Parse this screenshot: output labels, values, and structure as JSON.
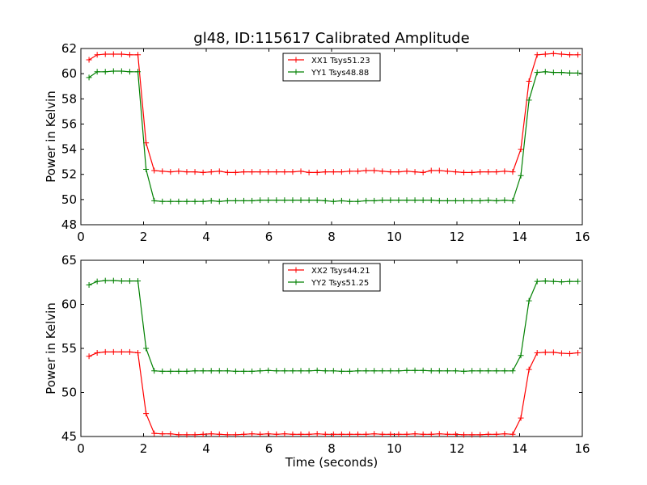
{
  "figure": {
    "title": "gl48, ID:115617 Calibrated Amplitude"
  },
  "colors": {
    "red": "#ff0000",
    "green": "#008000"
  },
  "chart_data": [
    {
      "type": "line",
      "xlabel": "",
      "ylabel": "Power in Kelvin",
      "xlim": [
        0,
        16
      ],
      "ylim": [
        48,
        62
      ],
      "xticks": [
        "0",
        "2",
        "4",
        "6",
        "8",
        "10",
        "12",
        "14",
        "16"
      ],
      "yticks": [
        "48",
        "50",
        "52",
        "54",
        "56",
        "58",
        "60",
        "62"
      ],
      "grid": false,
      "legend_position": "top-center",
      "marker": "plus",
      "x": [
        0.26,
        0.52,
        0.78,
        1.04,
        1.3,
        1.56,
        1.82,
        2.08,
        2.34,
        2.6,
        2.86,
        3.12,
        3.38,
        3.64,
        3.9,
        4.16,
        4.42,
        4.68,
        4.94,
        5.2,
        5.46,
        5.72,
        5.98,
        6.24,
        6.5,
        6.76,
        7.02,
        7.28,
        7.54,
        7.8,
        8.06,
        8.32,
        8.58,
        8.84,
        9.1,
        9.36,
        9.62,
        9.88,
        10.14,
        10.4,
        10.66,
        10.92,
        11.18,
        11.44,
        11.7,
        11.96,
        12.22,
        12.48,
        12.74,
        13.0,
        13.26,
        13.52,
        13.78,
        14.04,
        14.3,
        14.56,
        14.82,
        15.08,
        15.34,
        15.6,
        15.86
      ],
      "series": [
        {
          "name": "XX1 Tsys51.23",
          "color": "#ff0000",
          "values": [
            61.1,
            61.5,
            61.55,
            61.55,
            61.55,
            61.5,
            61.5,
            54.5,
            52.3,
            52.25,
            52.2,
            52.25,
            52.2,
            52.2,
            52.15,
            52.2,
            52.25,
            52.15,
            52.15,
            52.2,
            52.2,
            52.2,
            52.2,
            52.2,
            52.2,
            52.2,
            52.25,
            52.15,
            52.15,
            52.2,
            52.2,
            52.2,
            52.25,
            52.25,
            52.3,
            52.3,
            52.25,
            52.2,
            52.2,
            52.25,
            52.2,
            52.15,
            52.3,
            52.3,
            52.25,
            52.2,
            52.15,
            52.15,
            52.2,
            52.2,
            52.2,
            52.25,
            52.2,
            54.0,
            59.4,
            61.5,
            61.55,
            61.6,
            61.55,
            61.5,
            61.5
          ]
        },
        {
          "name": "YY1 Tsys48.88",
          "color": "#008000",
          "values": [
            59.7,
            60.15,
            60.15,
            60.2,
            60.2,
            60.15,
            60.15,
            52.4,
            49.9,
            49.85,
            49.85,
            49.85,
            49.85,
            49.85,
            49.85,
            49.9,
            49.85,
            49.9,
            49.9,
            49.9,
            49.9,
            49.95,
            49.95,
            49.95,
            49.95,
            49.95,
            49.95,
            49.95,
            49.95,
            49.9,
            49.85,
            49.9,
            49.85,
            49.85,
            49.9,
            49.9,
            49.95,
            49.95,
            49.95,
            49.95,
            49.95,
            49.95,
            49.95,
            49.9,
            49.9,
            49.9,
            49.9,
            49.9,
            49.9,
            49.95,
            49.9,
            49.95,
            49.9,
            51.9,
            57.9,
            60.1,
            60.15,
            60.1,
            60.1,
            60.05,
            60.05
          ]
        }
      ]
    },
    {
      "type": "line",
      "xlabel": "Time (seconds)",
      "ylabel": "Power in Kelvin",
      "xlim": [
        0,
        16
      ],
      "ylim": [
        45,
        65
      ],
      "xticks": [
        "0",
        "2",
        "4",
        "6",
        "8",
        "10",
        "12",
        "14",
        "16"
      ],
      "yticks": [
        "45",
        "50",
        "55",
        "60",
        "65"
      ],
      "grid": false,
      "legend_position": "top-center",
      "marker": "plus",
      "x": [
        0.26,
        0.52,
        0.78,
        1.04,
        1.3,
        1.56,
        1.82,
        2.08,
        2.34,
        2.6,
        2.86,
        3.12,
        3.38,
        3.64,
        3.9,
        4.16,
        4.42,
        4.68,
        4.94,
        5.2,
        5.46,
        5.72,
        5.98,
        6.24,
        6.5,
        6.76,
        7.02,
        7.28,
        7.54,
        7.8,
        8.06,
        8.32,
        8.58,
        8.84,
        9.1,
        9.36,
        9.62,
        9.88,
        10.14,
        10.4,
        10.66,
        10.92,
        11.18,
        11.44,
        11.7,
        11.96,
        12.22,
        12.48,
        12.74,
        13.0,
        13.26,
        13.52,
        13.78,
        14.04,
        14.3,
        14.56,
        14.82,
        15.08,
        15.34,
        15.6,
        15.86
      ],
      "series": [
        {
          "name": "XX2 Tsys44.21",
          "color": "#ff0000",
          "values": [
            54.1,
            54.5,
            54.6,
            54.6,
            54.6,
            54.6,
            54.5,
            47.6,
            45.35,
            45.3,
            45.3,
            45.2,
            45.2,
            45.2,
            45.25,
            45.3,
            45.25,
            45.2,
            45.2,
            45.25,
            45.3,
            45.25,
            45.3,
            45.25,
            45.3,
            45.25,
            45.25,
            45.25,
            45.3,
            45.25,
            45.25,
            45.25,
            45.25,
            45.25,
            45.25,
            45.3,
            45.25,
            45.25,
            45.25,
            45.25,
            45.3,
            45.25,
            45.25,
            45.3,
            45.25,
            45.25,
            45.2,
            45.2,
            45.2,
            45.25,
            45.25,
            45.3,
            45.25,
            47.1,
            52.6,
            54.5,
            54.55,
            54.55,
            54.45,
            54.4,
            54.5
          ]
        },
        {
          "name": "YY2 Tsys51.25",
          "color": "#008000",
          "values": [
            62.2,
            62.6,
            62.7,
            62.7,
            62.65,
            62.65,
            62.65,
            55.0,
            52.45,
            52.4,
            52.4,
            52.4,
            52.4,
            52.45,
            52.45,
            52.45,
            52.45,
            52.45,
            52.4,
            52.4,
            52.4,
            52.45,
            52.5,
            52.45,
            52.45,
            52.45,
            52.45,
            52.45,
            52.5,
            52.45,
            52.45,
            52.4,
            52.4,
            52.45,
            52.45,
            52.45,
            52.45,
            52.45,
            52.45,
            52.5,
            52.5,
            52.5,
            52.45,
            52.45,
            52.45,
            52.45,
            52.4,
            52.45,
            52.45,
            52.45,
            52.45,
            52.45,
            52.45,
            54.2,
            60.4,
            62.6,
            62.65,
            62.6,
            62.55,
            62.6,
            62.6
          ]
        }
      ]
    }
  ]
}
